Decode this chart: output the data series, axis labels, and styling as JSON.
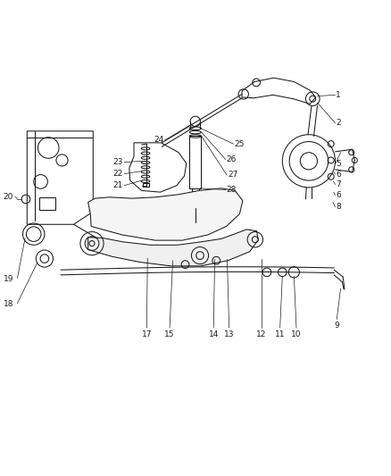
{
  "background_color": "#ffffff",
  "line_color": "#1a1a1a",
  "figsize": [
    4.38,
    5.33
  ],
  "dpi": 100,
  "label_fontsize": 6.5,
  "line_width": 0.75
}
